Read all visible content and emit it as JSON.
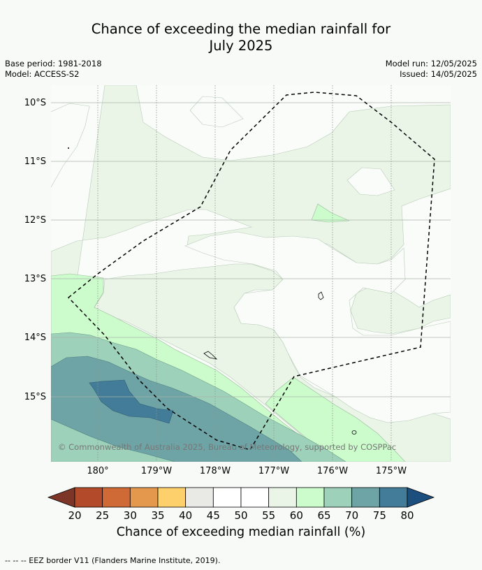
{
  "title_line1": "Chance of exceeding the median rainfall for",
  "title_line2": "July 2025",
  "meta_left": [
    "Base period: 1981-2018",
    "Model: ACCESS-S2"
  ],
  "meta_right": [
    "Model run: 12/05/2025",
    "Issued: 14/05/2025"
  ],
  "attribution": "© Commonwealth of Australia 2025, Bureau of Meteorology, supported by COSPPac",
  "lat_labels": [
    "10°S",
    "11°S",
    "12°S",
    "13°S",
    "14°S",
    "15°S"
  ],
  "lon_labels": [
    "180°",
    "179°W",
    "178°W",
    "177°W",
    "176°W",
    "175°W"
  ],
  "colorbar": {
    "ticks": [
      "20",
      "25",
      "30",
      "35",
      "40",
      "45",
      "50",
      "55",
      "60",
      "65",
      "70",
      "75",
      "80"
    ],
    "colors": [
      "#7d3528",
      "#b34a2a",
      "#cf6a37",
      "#e3984d",
      "#fdd06c",
      "#e9eae5",
      "#ffffff",
      "#ffffff",
      "#eaf5e8",
      "#ccfccc",
      "#9dd1b9",
      "#6ea4a6",
      "#427c98",
      "#1c4f7e"
    ],
    "title": "Chance of exceeding median rainfall (%)"
  },
  "footnote": "--  --  -- EEZ border V11 (Flanders Marine Institute, 2019)."
}
